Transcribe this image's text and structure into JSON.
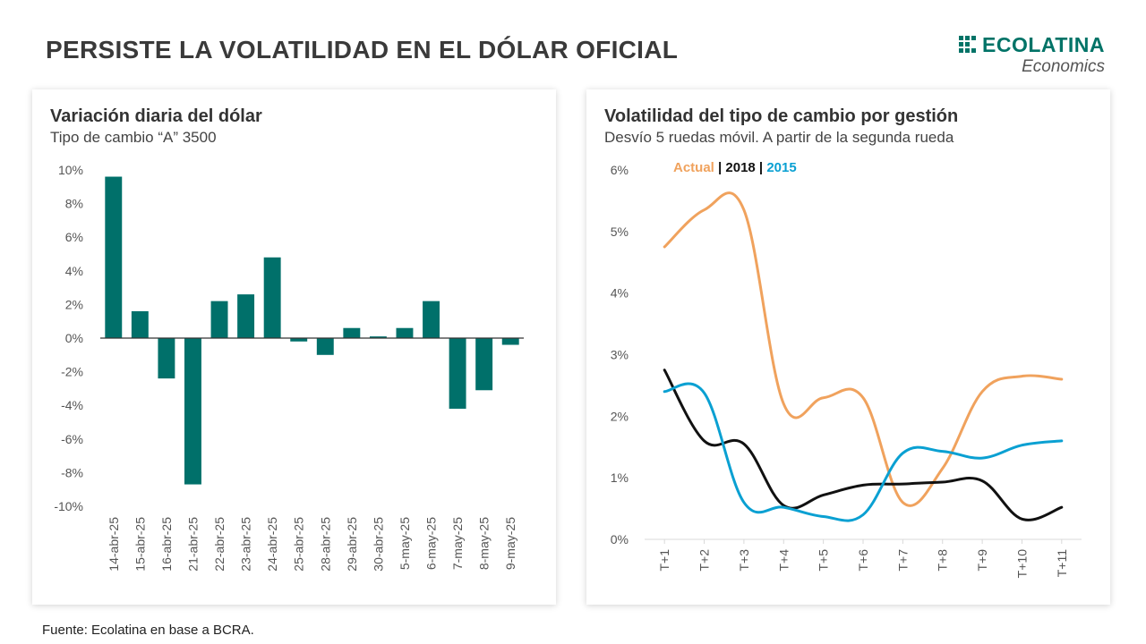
{
  "page": {
    "title": "PERSISTE LA VOLATILIDAD EN EL DÓLAR OFICIAL",
    "logo": {
      "name": "ECOLATINA",
      "subtitle": "Economics",
      "color": "#007367"
    },
    "source": "Fuente: Ecolatina en base a BCRA."
  },
  "chart_data": [
    {
      "type": "bar",
      "title": "Variación diaria del dólar",
      "subtitle": "Tipo de cambio “A” 3500",
      "categories": [
        "14-abr-25",
        "15-abr-25",
        "16-abr-25",
        "21-abr-25",
        "22-abr-25",
        "23-abr-25",
        "24-abr-25",
        "25-abr-25",
        "28-abr-25",
        "29-abr-25",
        "30-abr-25",
        "5-may-25",
        "6-may-25",
        "7-may-25",
        "8-may-25",
        "9-may-25"
      ],
      "values": [
        9.6,
        1.6,
        -2.4,
        -8.7,
        2.2,
        2.6,
        4.8,
        -0.2,
        -1.0,
        0.6,
        0.1,
        0.6,
        2.2,
        -4.2,
        -3.1,
        -0.4
      ],
      "ylim": [
        -10,
        10
      ],
      "yticks": [
        "10%",
        "8%",
        "6%",
        "4%",
        "2%",
        "0%",
        "-2%",
        "-4%",
        "-6%",
        "-8%",
        "-10%"
      ],
      "ytick_values": [
        10,
        8,
        6,
        4,
        2,
        0,
        -2,
        -4,
        -6,
        -8,
        -10
      ],
      "color": "#00706A",
      "grid": false
    },
    {
      "type": "line",
      "title": "Volatilidad del tipo de cambio por gestión",
      "subtitle": "Desvío 5 ruedas móvil. A partir de la segunda rueda",
      "categories": [
        "T+1",
        "T+2",
        "T+3",
        "T+4",
        "T+5",
        "T+6",
        "T+7",
        "T+8",
        "T+9",
        "T+10",
        "T+11"
      ],
      "ylim": [
        0,
        6
      ],
      "yticks": [
        "6%",
        "5%",
        "4%",
        "3%",
        "2%",
        "1%",
        "0%"
      ],
      "ytick_values": [
        6,
        5,
        4,
        3,
        2,
        1,
        0
      ],
      "legend_position": "top-left",
      "legend_separator": "|",
      "series": [
        {
          "name": "Actual",
          "color": "#F0A25D",
          "values": [
            4.75,
            5.35,
            5.35,
            2.2,
            2.3,
            2.3,
            0.6,
            1.15,
            2.4,
            2.65,
            2.6
          ]
        },
        {
          "name": "2018",
          "color": "#111111",
          "values": [
            2.75,
            1.6,
            1.55,
            0.55,
            0.72,
            0.88,
            0.9,
            0.93,
            0.95,
            0.33,
            0.52
          ]
        },
        {
          "name": "2015",
          "color": "#0AA0D2",
          "values": [
            2.4,
            2.38,
            0.6,
            0.52,
            0.37,
            0.4,
            1.4,
            1.43,
            1.32,
            1.53,
            1.6
          ]
        }
      ],
      "grid": false
    }
  ]
}
